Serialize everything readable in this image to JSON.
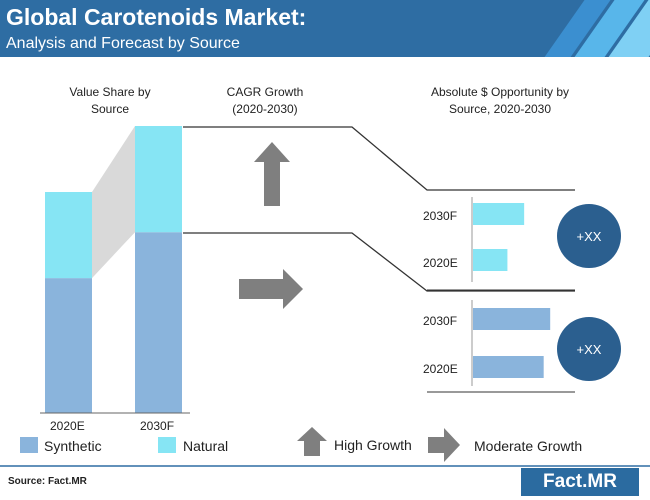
{
  "header": {
    "title": "Global Carotenoids Market:",
    "subtitle": "Analysis and Forecast by Source"
  },
  "column_headers": {
    "value_share": "Value Share by\nSource",
    "cagr": "CAGR Growth\n(2020-2030)",
    "opportunity": "Absolute $ Opportunity by\nSource, 2020-2030"
  },
  "legend": {
    "synthetic": "Synthetic",
    "natural": "Natural",
    "high_growth": "High Growth",
    "moderate_growth": "Moderate Growth"
  },
  "circles": [
    "+XX",
    "+XX"
  ],
  "source": "Source: Fact.MR",
  "logo": {
    "text": "Fact.MR"
  },
  "colors": {
    "header": "#2e6da3",
    "synthetic": "#8ab4dc",
    "natural": "#86e5f4",
    "circle": "#2b5f8f",
    "arrow": "#7f7f7f"
  },
  "chart_data": [
    {
      "type": "bar",
      "stacked": true,
      "categories": [
        "2020E",
        "2030F"
      ],
      "series": [
        {
          "name": "Synthetic",
          "values": [
            47,
            63
          ]
        },
        {
          "name": "Natural",
          "values": [
            30,
            37
          ]
        }
      ],
      "title": "Value Share by Source",
      "ylim": [
        0,
        100
      ]
    },
    {
      "type": "bar",
      "orientation": "horizontal",
      "title": "Absolute $ Opportunity by Source, 2020-2030",
      "groups": [
        {
          "source": "Natural",
          "categories": [
            "2030F",
            "2020E"
          ],
          "values": [
            55,
            37
          ],
          "growth": "High Growth",
          "annotation": "+XX"
        },
        {
          "source": "Synthetic",
          "categories": [
            "2030F",
            "2020E"
          ],
          "values": [
            83,
            76
          ],
          "growth": "Moderate Growth",
          "annotation": "+XX"
        }
      ],
      "xlim": [
        0,
        100
      ]
    }
  ]
}
